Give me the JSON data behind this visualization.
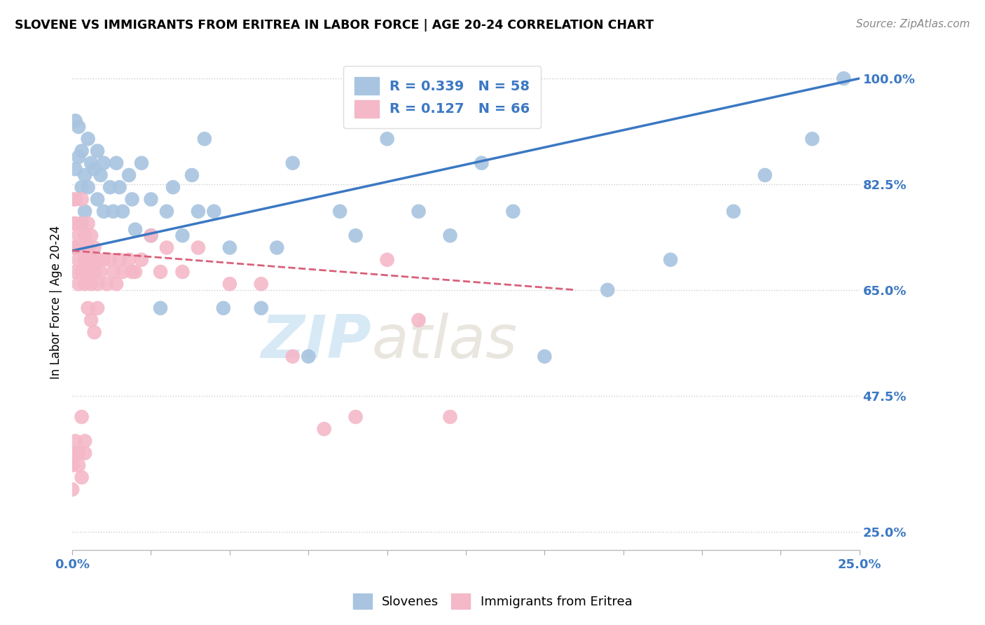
{
  "title": "SLOVENE VS IMMIGRANTS FROM ERITREA IN LABOR FORCE | AGE 20-24 CORRELATION CHART",
  "source": "Source: ZipAtlas.com",
  "ylabel": "In Labor Force | Age 20-24",
  "xlim": [
    0.0,
    0.25
  ],
  "ylim": [
    0.22,
    1.04
  ],
  "xticks": [
    0.0,
    0.025,
    0.05,
    0.075,
    0.1,
    0.125,
    0.15,
    0.175,
    0.2,
    0.225,
    0.25
  ],
  "ytick_labels": [
    "100.0%",
    "82.5%",
    "65.0%",
    "47.5%",
    "25.0%"
  ],
  "yticks": [
    1.0,
    0.825,
    0.65,
    0.475,
    0.25
  ],
  "blue_color": "#a8c4e0",
  "pink_color": "#f4b8c8",
  "blue_line_color": "#3b78c3",
  "pink_line_color": "#d9607a",
  "blue_R": 0.339,
  "blue_N": 58,
  "pink_R": 0.127,
  "pink_N": 66,
  "watermark_zip": "ZIP",
  "watermark_atlas": "atlas",
  "label_slovenes": "Slovenes",
  "label_eritrea": "Immigrants from Eritrea",
  "blue_trend_x": [
    0.0,
    0.25
  ],
  "blue_trend_y": [
    0.715,
    1.0
  ],
  "pink_trend_x": [
    0.0,
    0.16
  ],
  "pink_trend_y": [
    0.715,
    0.65
  ],
  "blue_x": [
    0.001,
    0.001,
    0.002,
    0.002,
    0.003,
    0.003,
    0.004,
    0.004,
    0.005,
    0.005,
    0.006,
    0.007,
    0.008,
    0.008,
    0.009,
    0.01,
    0.01,
    0.012,
    0.013,
    0.014,
    0.015,
    0.016,
    0.018,
    0.019,
    0.02,
    0.022,
    0.025,
    0.025,
    0.028,
    0.03,
    0.032,
    0.035,
    0.038,
    0.04,
    0.042,
    0.045,
    0.048,
    0.05,
    0.06,
    0.065,
    0.07,
    0.075,
    0.085,
    0.09,
    0.1,
    0.11,
    0.12,
    0.13,
    0.14,
    0.15,
    0.17,
    0.19,
    0.21,
    0.22,
    0.235,
    0.245,
    0.001,
    0.003
  ],
  "blue_y": [
    0.93,
    0.85,
    0.92,
    0.87,
    0.88,
    0.82,
    0.84,
    0.78,
    0.9,
    0.82,
    0.86,
    0.85,
    0.88,
    0.8,
    0.84,
    0.78,
    0.86,
    0.82,
    0.78,
    0.86,
    0.82,
    0.78,
    0.84,
    0.8,
    0.75,
    0.86,
    0.8,
    0.74,
    0.62,
    0.78,
    0.82,
    0.74,
    0.84,
    0.78,
    0.9,
    0.78,
    0.62,
    0.72,
    0.62,
    0.72,
    0.86,
    0.54,
    0.78,
    0.74,
    0.9,
    0.78,
    0.74,
    0.86,
    0.78,
    0.54,
    0.65,
    0.7,
    0.78,
    0.84,
    0.9,
    1.0,
    0.72,
    0.76
  ],
  "pink_x": [
    0.0,
    0.0,
    0.0,
    0.001,
    0.001,
    0.001,
    0.001,
    0.002,
    0.002,
    0.002,
    0.003,
    0.003,
    0.003,
    0.003,
    0.004,
    0.004,
    0.004,
    0.005,
    0.005,
    0.005,
    0.006,
    0.006,
    0.006,
    0.007,
    0.007,
    0.008,
    0.008,
    0.009,
    0.01,
    0.011,
    0.012,
    0.013,
    0.014,
    0.015,
    0.016,
    0.018,
    0.019,
    0.02,
    0.022,
    0.025,
    0.028,
    0.03,
    0.035,
    0.04,
    0.05,
    0.06,
    0.07,
    0.08,
    0.09,
    0.1,
    0.11,
    0.12,
    0.005,
    0.006,
    0.007,
    0.008,
    0.0,
    0.001,
    0.002,
    0.003,
    0.004,
    0.0,
    0.001,
    0.002,
    0.003,
    0.004
  ],
  "pink_y": [
    0.72,
    0.76,
    0.8,
    0.68,
    0.72,
    0.76,
    0.8,
    0.66,
    0.7,
    0.74,
    0.68,
    0.72,
    0.76,
    0.8,
    0.66,
    0.7,
    0.74,
    0.68,
    0.72,
    0.76,
    0.66,
    0.7,
    0.74,
    0.68,
    0.72,
    0.66,
    0.7,
    0.68,
    0.7,
    0.66,
    0.7,
    0.68,
    0.66,
    0.7,
    0.68,
    0.7,
    0.68,
    0.68,
    0.7,
    0.74,
    0.68,
    0.72,
    0.68,
    0.72,
    0.66,
    0.66,
    0.54,
    0.42,
    0.44,
    0.7,
    0.6,
    0.44,
    0.62,
    0.6,
    0.58,
    0.62,
    0.36,
    0.4,
    0.38,
    0.44,
    0.4,
    0.32,
    0.38,
    0.36,
    0.34,
    0.38
  ]
}
